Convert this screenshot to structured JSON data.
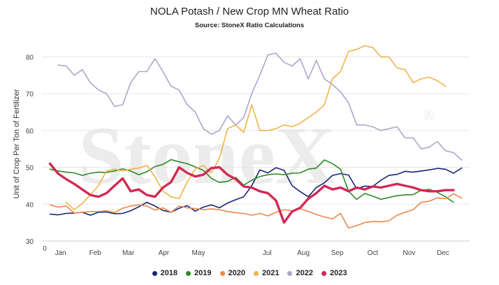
{
  "chart_data": {
    "type": "line",
    "title": "NOLA Potash / New Crop MN Wheat Ratio",
    "subtitle": "Source: StoneX Ratio Calculations",
    "ylabel": "Unit of Crop Per Ton of Fertilizer",
    "xlabel": "",
    "watermark": "StoneX",
    "watermark_mark": "®",
    "x_origin_label": "0",
    "ylim": [
      30,
      85
    ],
    "yticks": [
      30,
      40,
      50,
      60,
      70,
      80
    ],
    "x_range": [
      0,
      53
    ],
    "x_ticks": [
      {
        "label": "Jan",
        "x": 2.3
      },
      {
        "label": "Feb",
        "x": 6.6
      },
      {
        "label": "Mar",
        "x": 10.7
      },
      {
        "label": "Apr",
        "x": 15.1
      },
      {
        "label": "May",
        "x": 19.4
      },
      {
        "label": "Jul",
        "x": 27.9
      },
      {
        "label": "Aug",
        "x": 32.4
      },
      {
        "label": "Sep",
        "x": 36.6
      },
      {
        "label": "Oct",
        "x": 41.0
      },
      {
        "label": "Nov",
        "x": 45.5
      },
      {
        "label": "Dec",
        "x": 49.7
      }
    ],
    "grid": "horizontal",
    "legend_position": "bottom",
    "series": [
      {
        "name": "2018",
        "color": "#1a2477",
        "width": 1.6,
        "start": 1,
        "values": [
          37.3,
          37.1,
          37.5,
          37.6,
          37.8,
          37.0,
          37.8,
          37.9,
          37.4,
          37.5,
          38.2,
          39.3,
          40.5,
          39.5,
          38.3,
          37.8,
          38.9,
          39.6,
          38.1,
          39.2,
          39.8,
          39.0,
          40.3,
          41.2,
          42.0,
          45.0,
          49.3,
          48.5,
          49.9,
          49.2,
          45.0,
          43.4,
          42.0,
          44.5,
          45.8,
          47.8,
          48.3,
          47.9,
          44.2,
          44.9,
          44.8,
          46.5,
          47.8,
          48.1,
          48.9,
          48.7,
          49.0,
          49.3,
          49.7,
          49.5,
          48.4,
          49.8
        ]
      },
      {
        "name": "2019",
        "color": "#2a8a2a",
        "width": 1.6,
        "start": 1,
        "values": [
          49.5,
          49.0,
          48.7,
          48.5,
          47.8,
          48.4,
          48.7,
          48.6,
          49.0,
          49.6,
          49.0,
          48.0,
          48.8,
          50.2,
          50.8,
          52.1,
          51.5,
          51.0,
          50.1,
          49.2,
          47.0,
          45.9,
          46.2,
          47.3,
          45.2,
          46.5,
          47.5,
          48.0,
          48.2,
          48.0,
          48.4,
          48.5,
          49.5,
          49.8,
          52.0,
          51.0,
          49.5,
          43.5,
          41.3,
          42.9,
          42.2,
          41.3,
          41.8,
          42.3,
          42.5,
          42.6,
          43.8,
          44.0,
          43.2,
          42.0,
          40.5
        ]
      },
      {
        "name": "2020",
        "color": "#f0864a",
        "width": 1.6,
        "start": 1,
        "values": [
          39.8,
          39.2,
          39.5,
          37.6,
          37.8,
          38.0,
          38.0,
          38.2,
          37.7,
          38.9,
          39.5,
          39.8,
          39.5,
          38.4,
          39.0,
          37.8,
          39.5,
          39.0,
          38.8,
          38.5,
          38.7,
          38.5,
          38.0,
          37.7,
          37.5,
          37.0,
          37.5,
          36.8,
          37.8,
          38.5,
          38.2,
          38.8,
          38.0,
          37.2,
          36.5,
          36.0,
          37.5,
          33.5,
          34.2,
          35.0,
          35.3,
          35.2,
          35.5,
          37.0,
          37.8,
          38.5,
          40.5,
          40.8,
          41.7,
          41.5,
          42.8,
          41.7
        ]
      },
      {
        "name": "2021",
        "color": "#f2b34a",
        "width": 1.6,
        "start": 3,
        "values": [
          40.5,
          38.5,
          40.2,
          42.5,
          45.0,
          49.0,
          49.5,
          49.0,
          49.5,
          49.8,
          50.5,
          47.5,
          43.5,
          42.0,
          41.5,
          46.0,
          49.5,
          50.5,
          48.5,
          52.5,
          60.5,
          61.5,
          59.5,
          67.0,
          60.0,
          60.0,
          60.5,
          61.5,
          61.0,
          62.0,
          63.5,
          65.0,
          67.0,
          74.0,
          76.0,
          81.5,
          82.0,
          83.0,
          82.5,
          80.0,
          80.0,
          77.0,
          76.5,
          73.0,
          74.0,
          74.5,
          73.5,
          72.0
        ]
      },
      {
        "name": "2022",
        "color": "#a8a8cc",
        "width": 1.6,
        "start": 2,
        "values": [
          77.8,
          77.5,
          75.0,
          76.5,
          73.0,
          71.0,
          70.0,
          66.5,
          67.0,
          73.0,
          76.0,
          76.0,
          79.5,
          76.0,
          72.0,
          71.0,
          67.0,
          65.0,
          60.5,
          59.0,
          60.0,
          64.0,
          61.5,
          63.5,
          70.0,
          75.0,
          80.5,
          81.0,
          78.5,
          77.5,
          79.5,
          74.0,
          79.0,
          74.0,
          72.5,
          70.5,
          67.5,
          61.5,
          61.5,
          61.0,
          60.0,
          60.5,
          61.0,
          58.0,
          58.0,
          55.0,
          55.5,
          57.0,
          54.5,
          54.0,
          52.0
        ]
      },
      {
        "name": "2023",
        "color": "#d12a53",
        "width": 3.4,
        "start": 1,
        "values": [
          51.0,
          48.3,
          46.8,
          45.5,
          44.0,
          42.5,
          42.0,
          43.0,
          45.0,
          47.0,
          43.5,
          44.0,
          42.5,
          42.0,
          44.5,
          46.0,
          50.0,
          48.5,
          47.5,
          48.0,
          49.8,
          50.0,
          48.0,
          46.8,
          44.8,
          44.5,
          43.5,
          43.0,
          41.0,
          35.0,
          38.0,
          39.0,
          41.5,
          43.0,
          45.0,
          44.0,
          44.5,
          43.5,
          44.5,
          44.0,
          44.8,
          44.5,
          45.0,
          45.5,
          45.0,
          44.5,
          43.8,
          43.5,
          43.5,
          43.8,
          43.8
        ]
      }
    ]
  }
}
